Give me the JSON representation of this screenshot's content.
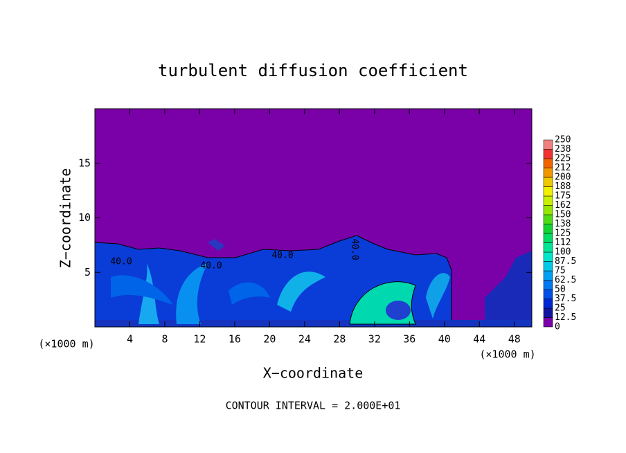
{
  "chart_data": {
    "type": "contour",
    "title": "turbulent diffusion coefficient",
    "x_label": "X−coordinate",
    "y_label": "Z−coordinate",
    "x_unit_left": "(×1000 m)",
    "x_unit_right": "(×1000 m)",
    "footer": "CONTOUR INTERVAL = 2.000E+01",
    "xlim": [
      0,
      50
    ],
    "xticks": [
      4,
      8,
      12,
      16,
      20,
      24,
      28,
      32,
      36,
      40,
      44,
      48
    ],
    "ylim": [
      0,
      20
    ],
    "yticks": [
      5,
      10,
      15
    ],
    "contour_labels": [
      "40.0",
      "40.0",
      "40.0",
      "40.0"
    ],
    "colorbar": {
      "ticks": [
        0,
        12.5,
        25,
        37.5,
        50,
        62.5,
        75,
        87.5,
        100,
        112,
        125,
        138,
        150,
        162,
        175,
        188,
        200,
        212,
        225,
        238,
        250
      ],
      "colors": [
        "#7a00a8",
        "#1414a0",
        "#0028d2",
        "#0050e6",
        "#0078f0",
        "#00a0f0",
        "#00c8e6",
        "#00e6c8",
        "#00e696",
        "#00dc64",
        "#14d232",
        "#50dc14",
        "#96e600",
        "#c8f000",
        "#f0f000",
        "#f0c800",
        "#f09600",
        "#f06400",
        "#f03232",
        "#f08080"
      ]
    }
  }
}
